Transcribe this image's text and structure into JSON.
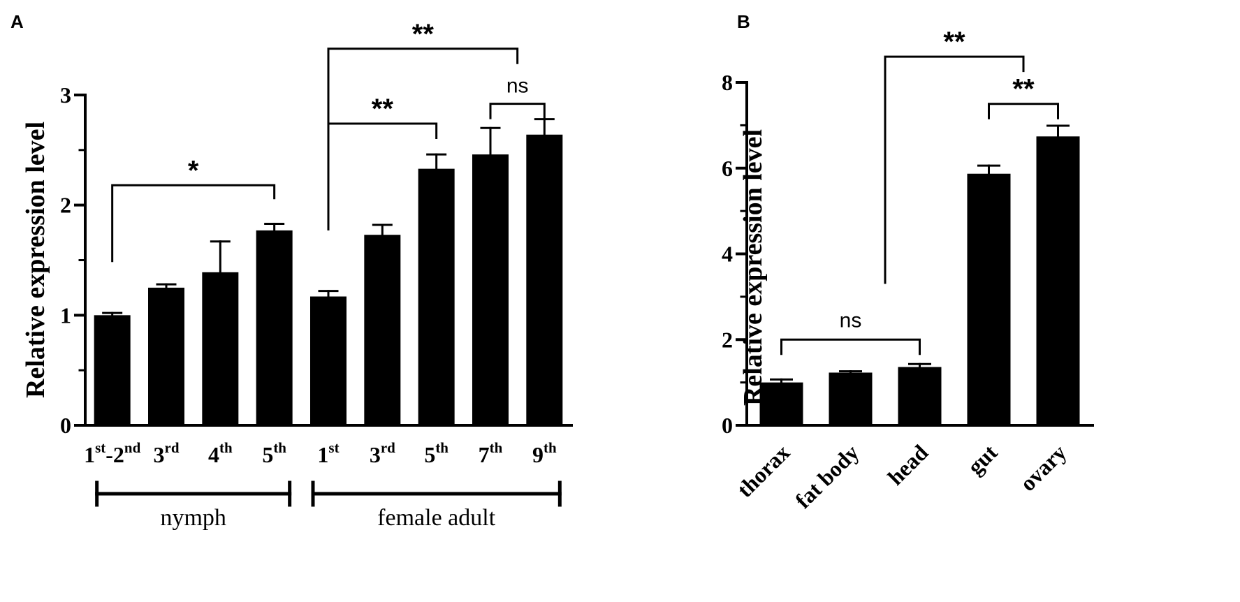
{
  "chart_data": [
    {
      "panel": "A",
      "type": "bar",
      "ylabel": "Relative expression level",
      "ylim": [
        0,
        3
      ],
      "yticks": [
        "0",
        "1",
        "2",
        "3"
      ],
      "categories": [
        {
          "base": "1",
          "sup": "st",
          "mid": "-2",
          "sup2": "nd"
        },
        {
          "base": "3",
          "sup": "rd"
        },
        {
          "base": "4",
          "sup": "th"
        },
        {
          "base": "5",
          "sup": "th"
        },
        {
          "base": "1",
          "sup": "st"
        },
        {
          "base": "3",
          "sup": "rd"
        },
        {
          "base": "5",
          "sup": "th"
        },
        {
          "base": "7",
          "sup": "th"
        },
        {
          "base": "9",
          "sup": "th"
        }
      ],
      "values": [
        1.0,
        1.25,
        1.39,
        1.77,
        1.17,
        1.73,
        2.33,
        2.46,
        2.64
      ],
      "errors": [
        0.02,
        0.03,
        0.28,
        0.06,
        0.05,
        0.09,
        0.13,
        0.24,
        0.14
      ],
      "groups": [
        {
          "label": "nymph",
          "from": 0,
          "to": 3
        },
        {
          "label": "female adult",
          "from": 4,
          "to": 8
        }
      ],
      "significance": [
        {
          "from": 0,
          "to": 3,
          "label": "*",
          "level": 2.18
        },
        {
          "from": 4,
          "to": 6,
          "label": "**",
          "level": 2.74
        },
        {
          "from": 7,
          "to": 8,
          "label": "ns",
          "level": 2.92
        },
        {
          "from": 4,
          "to": 7.5,
          "label": "**",
          "level": 3.42
        }
      ]
    },
    {
      "panel": "B",
      "type": "bar",
      "ylabel": "Relative expression level",
      "ylim": [
        0,
        8
      ],
      "yticks": [
        "0",
        "2",
        "4",
        "6",
        "8"
      ],
      "categories": [
        "thorax",
        "fat body",
        "head",
        "gut",
        "ovary"
      ],
      "values": [
        1.0,
        1.23,
        1.36,
        5.87,
        6.74
      ],
      "errors": [
        0.07,
        0.03,
        0.07,
        0.19,
        0.25
      ],
      "significance": [
        {
          "from": 0,
          "to": 2,
          "label": "ns",
          "level": 2.0
        },
        {
          "from": 3,
          "to": 4,
          "label": "**",
          "level": 7.5
        },
        {
          "from": 1.5,
          "to": 3.5,
          "label": "**",
          "level": 8.6
        }
      ]
    }
  ]
}
